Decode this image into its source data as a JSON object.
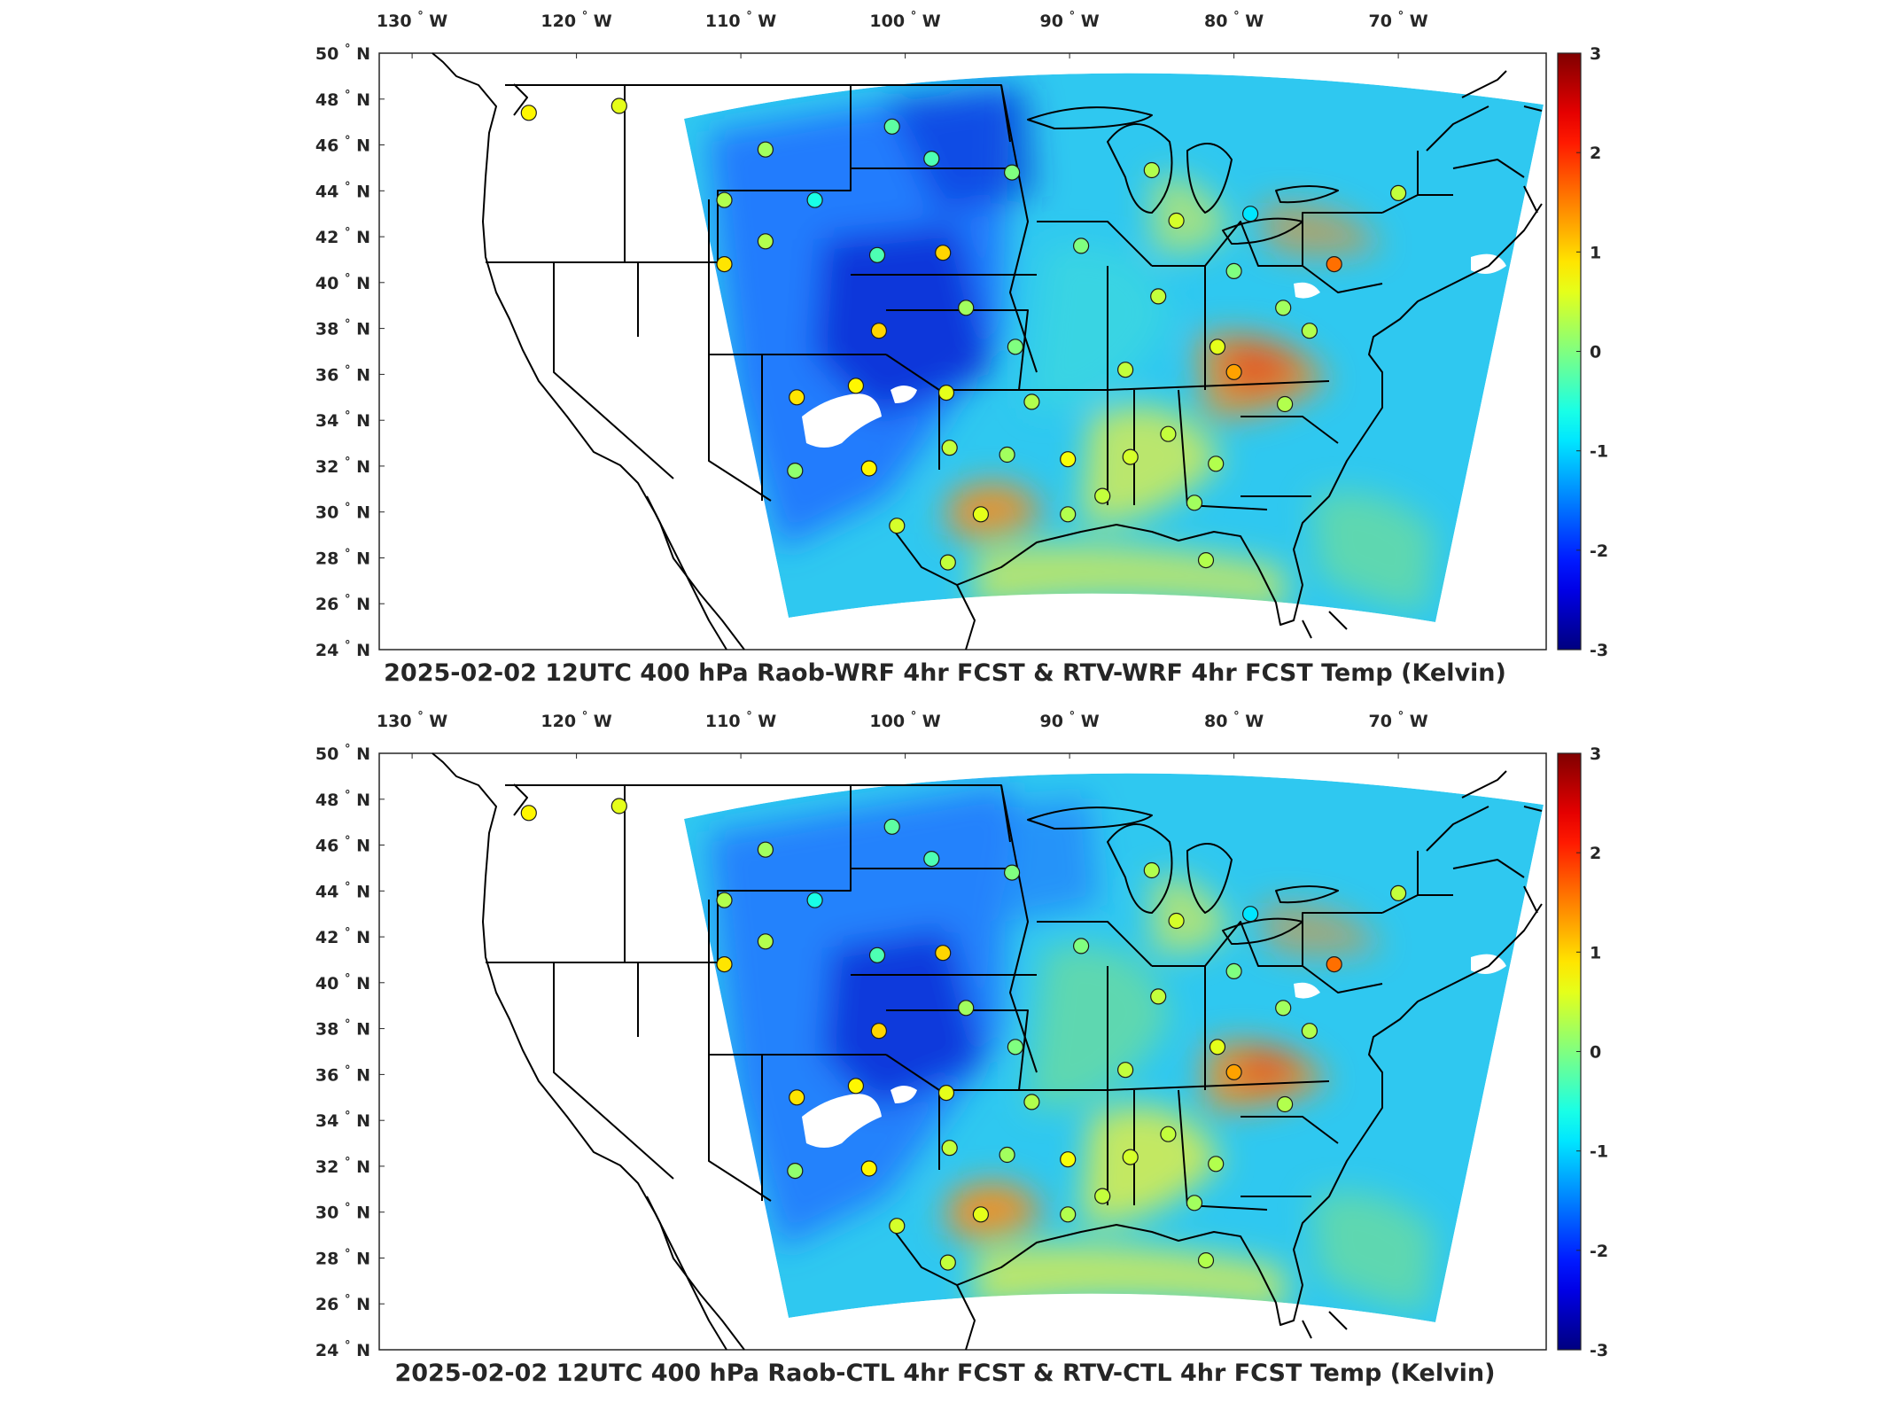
{
  "panels": [
    {
      "title": "2025-02-02 12UTC 400 hPa Raob-WRF 4hr FCST & RTV-WRF 4hr FCST Temp (Kelvin)",
      "variant": "wrf"
    },
    {
      "title": "2025-02-02 12UTC 400 hPa Raob-CTL 4hr FCST & RTV-CTL 4hr FCST Temp (Kelvin)",
      "variant": "ctl"
    }
  ],
  "map": {
    "lon_ticks": [
      {
        "value": -130,
        "label": "130"
      },
      {
        "value": -120,
        "label": "120"
      },
      {
        "value": -110,
        "label": "110"
      },
      {
        "value": -100,
        "label": "100"
      },
      {
        "value": -90,
        "label": "90"
      },
      {
        "value": -80,
        "label": "80"
      },
      {
        "value": -70,
        "label": "70"
      }
    ],
    "lon_hemisphere": "W",
    "lat_ticks": [
      {
        "value": 50,
        "label": "50"
      },
      {
        "value": 48,
        "label": "48"
      },
      {
        "value": 46,
        "label": "46"
      },
      {
        "value": 44,
        "label": "44"
      },
      {
        "value": 42,
        "label": "42"
      },
      {
        "value": 40,
        "label": "40"
      },
      {
        "value": 38,
        "label": "38"
      },
      {
        "value": 36,
        "label": "36"
      },
      {
        "value": 34,
        "label": "34"
      },
      {
        "value": 32,
        "label": "32"
      },
      {
        "value": 30,
        "label": "30"
      },
      {
        "value": 28,
        "label": "28"
      },
      {
        "value": 26,
        "label": "26"
      },
      {
        "value": 24,
        "label": "24"
      }
    ],
    "lat_hemisphere": "N",
    "degree_symbol": "°",
    "lon_range": [
      -132,
      -61
    ],
    "lat_range": [
      24,
      50
    ],
    "colormap": "jet",
    "colorbar": {
      "min": -3,
      "max": 3,
      "ticks": [
        {
          "value": 3,
          "label": "3"
        },
        {
          "value": 2,
          "label": "2"
        },
        {
          "value": 1,
          "label": "1"
        },
        {
          "value": 0,
          "label": "0"
        },
        {
          "value": -1,
          "label": "-1"
        },
        {
          "value": -2,
          "label": "-2"
        },
        {
          "value": -3,
          "label": "-3"
        }
      ]
    },
    "colors": {
      "deep_blue": "#0a2fd6",
      "blue": "#1f6fff",
      "cyan": "#2fc8f0",
      "aqua": "#44e0d8",
      "green": "#8ee870",
      "yellow": "#e8f040",
      "orange": "#f59020",
      "red": "#e84a1a",
      "outline": "#000000"
    },
    "raob_stations": [
      {
        "lon": -122.9,
        "lat": 47.4,
        "value": 0.8
      },
      {
        "lon": -117.4,
        "lat": 47.7,
        "value": 0.6
      },
      {
        "lon": -108.5,
        "lat": 45.8,
        "value": 0.2
      },
      {
        "lon": -100.8,
        "lat": 46.8,
        "value": -0.2
      },
      {
        "lon": -111.0,
        "lat": 43.6,
        "value": 0.3
      },
      {
        "lon": -105.5,
        "lat": 43.6,
        "value": -0.6
      },
      {
        "lon": -98.4,
        "lat": 45.4,
        "value": -0.3
      },
      {
        "lon": -93.5,
        "lat": 44.8,
        "value": 0.0
      },
      {
        "lon": -85.0,
        "lat": 44.9,
        "value": 0.3
      },
      {
        "lon": -83.5,
        "lat": 42.7,
        "value": 0.5
      },
      {
        "lon": -79.0,
        "lat": 43.0,
        "value": -0.9
      },
      {
        "lon": -70.0,
        "lat": 43.9,
        "value": 0.4
      },
      {
        "lon": -108.5,
        "lat": 41.8,
        "value": 0.3
      },
      {
        "lon": -101.7,
        "lat": 41.2,
        "value": -0.3
      },
      {
        "lon": -97.7,
        "lat": 41.3,
        "value": 1.0
      },
      {
        "lon": -89.3,
        "lat": 41.6,
        "value": 0.0
      },
      {
        "lon": -84.6,
        "lat": 39.4,
        "value": 0.4
      },
      {
        "lon": -80.0,
        "lat": 40.5,
        "value": 0.0
      },
      {
        "lon": -73.9,
        "lat": 40.8,
        "value": 1.6
      },
      {
        "lon": -111.0,
        "lat": 40.8,
        "value": 0.9
      },
      {
        "lon": -96.3,
        "lat": 38.9,
        "value": 0.2
      },
      {
        "lon": -101.6,
        "lat": 37.9,
        "value": 1.0
      },
      {
        "lon": -93.3,
        "lat": 37.2,
        "value": 0.0
      },
      {
        "lon": -86.6,
        "lat": 36.2,
        "value": 0.4
      },
      {
        "lon": -81.0,
        "lat": 37.2,
        "value": 0.6
      },
      {
        "lon": -80.0,
        "lat": 36.1,
        "value": 1.3
      },
      {
        "lon": -77.0,
        "lat": 38.9,
        "value": 0.2
      },
      {
        "lon": -75.4,
        "lat": 37.9,
        "value": 0.3
      },
      {
        "lon": -97.5,
        "lat": 35.2,
        "value": 0.6
      },
      {
        "lon": -106.6,
        "lat": 35.0,
        "value": 0.9
      },
      {
        "lon": -103.0,
        "lat": 35.5,
        "value": 0.8
      },
      {
        "lon": -92.3,
        "lat": 34.8,
        "value": 0.3
      },
      {
        "lon": -76.9,
        "lat": 34.7,
        "value": 0.3
      },
      {
        "lon": -97.3,
        "lat": 32.8,
        "value": 0.4
      },
      {
        "lon": -93.8,
        "lat": 32.5,
        "value": 0.2
      },
      {
        "lon": -90.1,
        "lat": 32.3,
        "value": 0.7
      },
      {
        "lon": -86.3,
        "lat": 32.4,
        "value": 0.5
      },
      {
        "lon": -84.0,
        "lat": 33.4,
        "value": 0.4
      },
      {
        "lon": -81.1,
        "lat": 32.1,
        "value": 0.3
      },
      {
        "lon": -106.7,
        "lat": 31.8,
        "value": 0.1
      },
      {
        "lon": -102.2,
        "lat": 31.9,
        "value": 0.8
      },
      {
        "lon": -95.4,
        "lat": 29.9,
        "value": 0.6
      },
      {
        "lon": -90.1,
        "lat": 29.9,
        "value": 0.3
      },
      {
        "lon": -82.4,
        "lat": 30.4,
        "value": 0.2
      },
      {
        "lon": -100.5,
        "lat": 29.4,
        "value": 0.5
      },
      {
        "lon": -97.4,
        "lat": 27.8,
        "value": 0.4
      },
      {
        "lon": -81.7,
        "lat": 27.9,
        "value": 0.3
      },
      {
        "lon": -88.0,
        "lat": 30.7,
        "value": 0.4
      }
    ]
  }
}
